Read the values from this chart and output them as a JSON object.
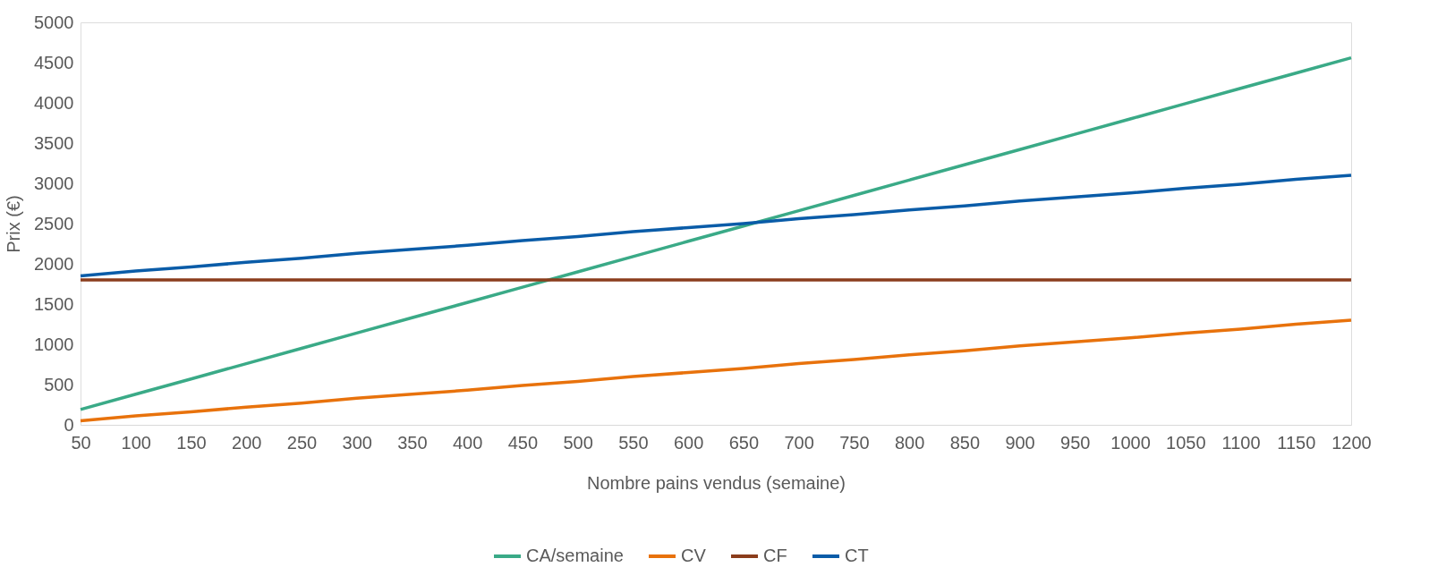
{
  "chart_data": {
    "type": "line",
    "xlabel": "Nombre pains vendus (semaine)",
    "ylabel": "Prix (€)",
    "x": [
      50,
      100,
      150,
      200,
      250,
      300,
      350,
      400,
      450,
      500,
      550,
      600,
      650,
      700,
      750,
      800,
      850,
      900,
      950,
      1000,
      1050,
      1100,
      1150,
      1200
    ],
    "series": [
      {
        "name": "CA/semaine",
        "color": "#3aaa87",
        "values": [
          190,
          380,
          570,
          760,
          950,
          1140,
          1330,
          1520,
          1710,
          1900,
          2090,
          2280,
          2470,
          2660,
          2850,
          3040,
          3230,
          3420,
          3610,
          3800,
          3990,
          4180,
          4370,
          4560
        ]
      },
      {
        "name": "CV",
        "color": "#e8720c",
        "values": [
          50,
          110,
          160,
          220,
          270,
          330,
          380,
          430,
          490,
          540,
          600,
          650,
          700,
          760,
          810,
          870,
          920,
          980,
          1030,
          1080,
          1140,
          1190,
          1250,
          1300
        ]
      },
      {
        "name": "CF",
        "color": "#8b3d1c",
        "values": [
          1800,
          1800,
          1800,
          1800,
          1800,
          1800,
          1800,
          1800,
          1800,
          1800,
          1800,
          1800,
          1800,
          1800,
          1800,
          1800,
          1800,
          1800,
          1800,
          1800,
          1800,
          1800,
          1800,
          1800
        ]
      },
      {
        "name": "CT",
        "color": "#0a5ca8",
        "values": [
          1850,
          1910,
          1960,
          2020,
          2070,
          2130,
          2180,
          2230,
          2290,
          2340,
          2400,
          2450,
          2500,
          2560,
          2610,
          2670,
          2720,
          2780,
          2830,
          2880,
          2940,
          2990,
          3050,
          3100
        ]
      }
    ],
    "xlim": [
      50,
      1200
    ],
    "xticks": [
      50,
      100,
      150,
      200,
      250,
      300,
      350,
      400,
      450,
      500,
      550,
      600,
      650,
      700,
      750,
      800,
      850,
      900,
      950,
      1000,
      1050,
      1100,
      1150,
      1200
    ],
    "ylim": [
      0,
      5000
    ],
    "yticks": [
      0,
      500,
      1000,
      1500,
      2000,
      2500,
      3000,
      3500,
      4000,
      4500,
      5000
    ],
    "grid": false,
    "legend": "bottom",
    "marker": "none",
    "line_style": "solid"
  }
}
